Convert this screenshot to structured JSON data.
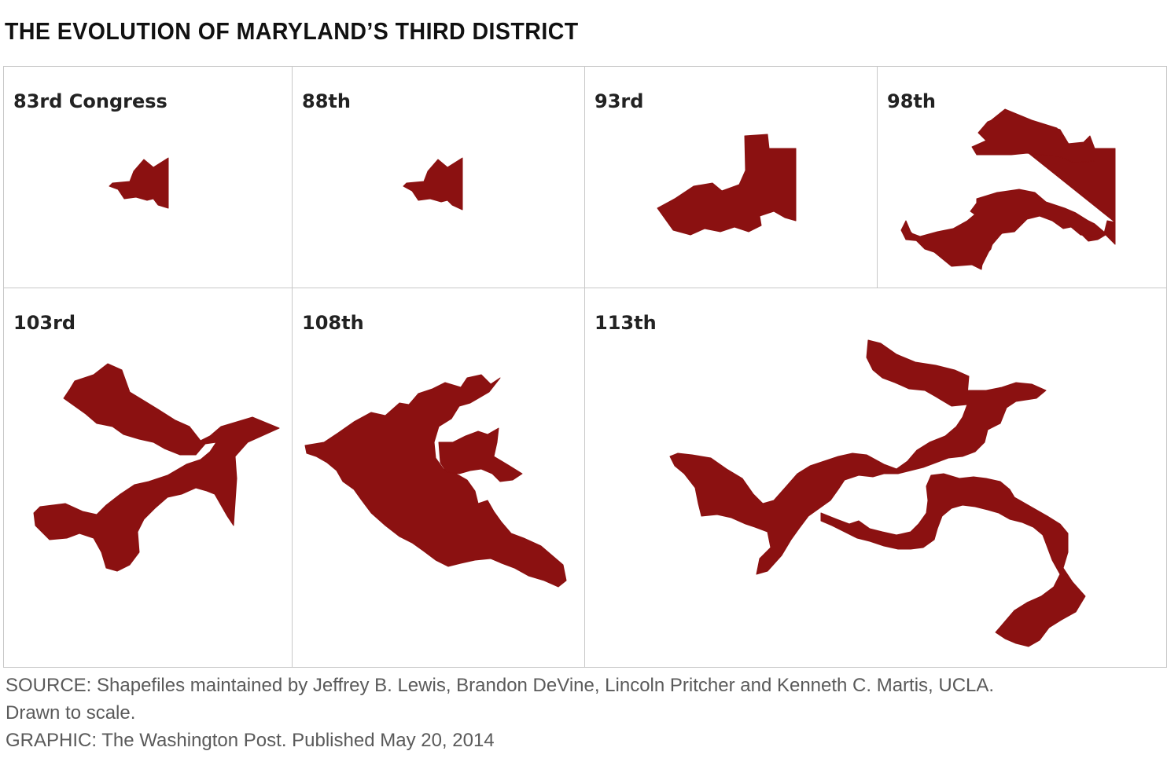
{
  "title": "THE EVOLUTION OF MARYLAND’S THIRD DISTRICT",
  "panels": [
    {
      "label": "83rd Congress"
    },
    {
      "label": "88th"
    },
    {
      "label": "93rd"
    },
    {
      "label": "98th"
    },
    {
      "label": "103rd"
    },
    {
      "label": "108th"
    },
    {
      "label": "113th"
    }
  ],
  "colors": {
    "district_fill": "#8b1111",
    "grid_lines": "#c8c8c8",
    "footer_text": "#5a5a5a"
  },
  "footer": {
    "source_line1": "SOURCE: Shapefiles maintained by Jeffrey B. Lewis, Brandon DeVine, Lincoln Pritcher and Kenneth C. Martis, UCLA.",
    "source_line2": "Drawn to scale.",
    "graphic_credit": "GRAPHIC: The Washington Post. Published May 20, 2014"
  }
}
